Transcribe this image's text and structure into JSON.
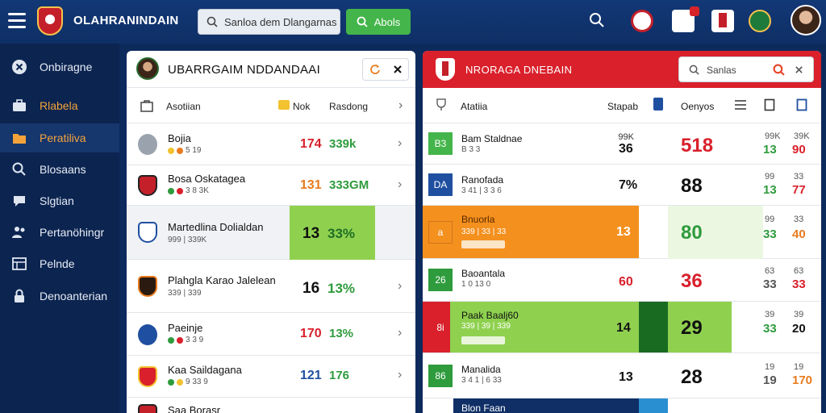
{
  "topbar": {
    "title": "OLAHRANINDAIN",
    "search_text": "Sanloa dem Dlangarnas",
    "green_button_label": "Abols"
  },
  "sidebar": {
    "items": [
      {
        "label": "Onbiragne",
        "icon": "close-circle-icon"
      },
      {
        "label": "Rlabela",
        "icon": "briefcase-icon"
      },
      {
        "label": "Peratiliva",
        "icon": "folder-icon"
      },
      {
        "label": "Blosaans",
        "icon": "search-icon"
      },
      {
        "label": "Slgtian",
        "icon": "chat-icon"
      },
      {
        "label": "Pertanöhingr",
        "icon": "users-icon"
      },
      {
        "label": "Pelnde",
        "icon": "grid-icon"
      },
      {
        "label": "Denoanterian",
        "icon": "lock-icon"
      }
    ]
  },
  "left_panel": {
    "title": "UBARRGAIM NDDANDAAI",
    "col1": "Asotiian",
    "col2": "Nok",
    "col3": "Rasdong",
    "rows": [
      {
        "name": "Bojia",
        "meta": "5 19",
        "score": "174",
        "pct": "339k",
        "score_color": "#d9202b"
      },
      {
        "name": "Bosa Oskatagea",
        "meta": "3 8 3K",
        "score": "131",
        "pct": "333GM",
        "score_color": "#e87b1e"
      },
      {
        "name": "Martedlina Dolialdan",
        "meta": "999 | 339K",
        "score": "13",
        "pct": "33%",
        "score_color": "#111111"
      },
      {
        "name": "Plahgla Karao Jalelean",
        "meta": "339 | 339",
        "score": "16",
        "pct": "13%",
        "score_color": "#111111"
      },
      {
        "name": "Paeinje",
        "meta": "3 3 9",
        "score": "170",
        "pct": "13%",
        "score_color": "#d9202b"
      },
      {
        "name": "Kaa Saildagana",
        "meta": "9 33 9",
        "score": "121",
        "pct": "176",
        "score_color": "#1f4fa0"
      },
      {
        "name": "Saa Borasr",
        "meta": "",
        "score": "",
        "pct": "",
        "score_color": "#111111"
      }
    ]
  },
  "right_panel": {
    "title": "NRORAGA DNEBAIN",
    "search_text": "Sanlas",
    "col1": "Atatiia",
    "col2": "Stapab",
    "col3": "Oenyos",
    "rows": [
      {
        "tag": "B3",
        "name": "Bam Staldnae",
        "meta": "B 3 3",
        "mid": "99K",
        "midv": "36",
        "big": "518",
        "sm1": "99K",
        "sm2": "39K",
        "v1": "13",
        "v2": "90",
        "big_color": "#d9202b"
      },
      {
        "tag": "DA",
        "name": "Ranofada",
        "meta": "3 41 | 3 3 6",
        "mid": "",
        "midv": "7%",
        "big": "88",
        "sm1": "99",
        "sm2": "33",
        "v1": "13",
        "v2": "77",
        "big_color": "#111111"
      },
      {
        "tag": "a",
        "name": "Bnuorla",
        "meta": "339 | 33 | 33",
        "mid": "",
        "midv": "13",
        "big": "80",
        "sm1": "99",
        "sm2": "33",
        "v1": "33",
        "v2": "40",
        "big_color": "#2e9b3c"
      },
      {
        "tag": "26",
        "name": "Baoantala",
        "meta": "1 0 13 0",
        "mid": "",
        "midv": "60",
        "big": "36",
        "sm1": "63",
        "sm2": "63",
        "v1": "33",
        "v2": "33",
        "big_color": "#d9202b"
      },
      {
        "tag": "8i",
        "name": "Paak Baalj60",
        "meta": "339 | 39 | 339",
        "mid": "",
        "midv": "14",
        "big": "29",
        "sm1": "39",
        "sm2": "39",
        "v1": "33",
        "v2": "20",
        "big_color": "#111111"
      },
      {
        "tag": "86",
        "name": "Manalida",
        "meta": "3 4 1 | 6 33",
        "mid": "",
        "midv": "13",
        "big": "28",
        "sm1": "19",
        "sm2": "19",
        "v1": "19",
        "v2": "170",
        "big_color": "#111111"
      },
      {
        "tag": "",
        "name": "Blon Faan",
        "meta": "",
        "mid": "",
        "midv": "",
        "big": "",
        "sm1": "",
        "sm2": "",
        "v1": "",
        "v2": "",
        "big_color": "#111111"
      }
    ]
  },
  "colors": {
    "navy": "#0d2a5c",
    "red": "#d9202b",
    "green": "#44b54a",
    "orange": "#f4901e",
    "lightgreen": "#8fd14f",
    "blue": "#1f4fa0"
  }
}
